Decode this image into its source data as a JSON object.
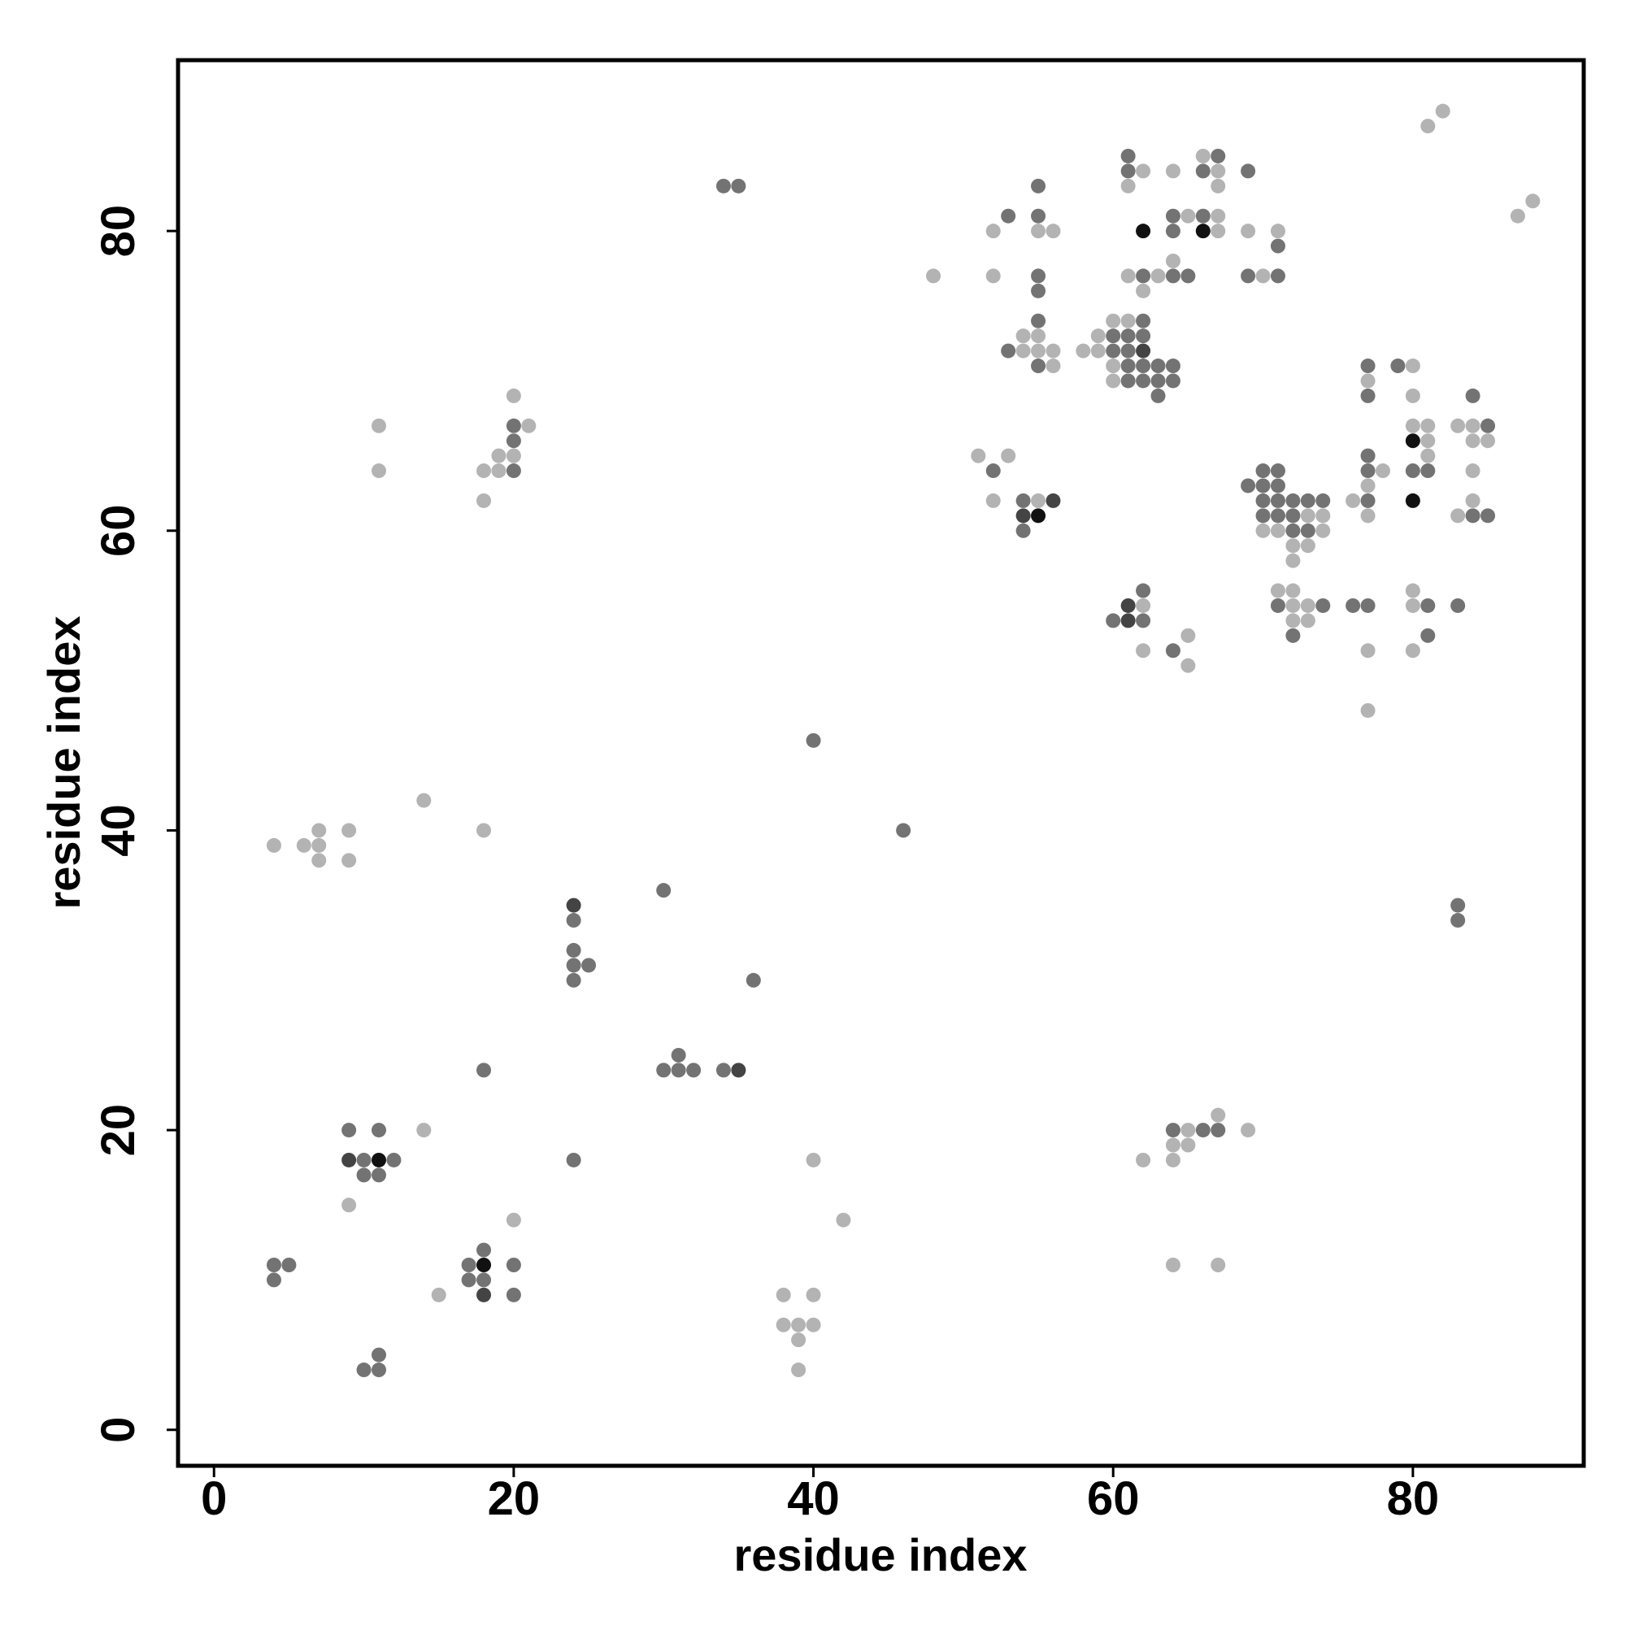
{
  "chart_data": {
    "type": "scatter",
    "xlabel": "residue index",
    "ylabel": "residue index",
    "xlim": [
      -2.4,
      91.4
    ],
    "ylim": [
      -2.4,
      91.4
    ],
    "xticks": [
      0,
      20,
      40,
      60,
      80
    ],
    "yticks": [
      0,
      20,
      40,
      60,
      80
    ],
    "grid": false,
    "series": [
      {
        "color": "#b3b3b3",
        "x": [
          4,
          6,
          7,
          7,
          7,
          9,
          9,
          14,
          18,
          11,
          11,
          18,
          18,
          19,
          19,
          20,
          20,
          21,
          14,
          9,
          20,
          15,
          38,
          40,
          38,
          39,
          40,
          39,
          39,
          40,
          42,
          62,
          65,
          67,
          69,
          64,
          65,
          64,
          64,
          67,
          48,
          52,
          52,
          55,
          56,
          54,
          55,
          54,
          55,
          56,
          56,
          51,
          53,
          52,
          55,
          58,
          59,
          59,
          60,
          60,
          60,
          61,
          61,
          62,
          61,
          63,
          62,
          64,
          65,
          64,
          66,
          67,
          67,
          67,
          67,
          69,
          71,
          70,
          62,
          62,
          65,
          65,
          73,
          74,
          70,
          71,
          74,
          72,
          73,
          72,
          71,
          72,
          72,
          73,
          72,
          73,
          76,
          78,
          77,
          77,
          77,
          77,
          77,
          80,
          80,
          80,
          81,
          81,
          81,
          80,
          80,
          80,
          83,
          84,
          84,
          85,
          84,
          84,
          83,
          81,
          82,
          87,
          88
        ],
        "y": [
          39,
          39,
          40,
          39,
          38,
          40,
          38,
          42,
          40,
          67,
          64,
          62,
          64,
          64,
          65,
          65,
          69,
          67,
          20,
          15,
          14,
          9,
          9,
          9,
          7,
          7,
          7,
          6,
          4,
          18,
          14,
          18,
          20,
          21,
          20,
          19,
          19,
          18,
          11,
          11,
          77,
          80,
          77,
          80,
          80,
          73,
          73,
          72,
          72,
          72,
          71,
          65,
          65,
          62,
          62,
          72,
          73,
          72,
          74,
          71,
          70,
          74,
          83,
          84,
          77,
          77,
          76,
          84,
          81,
          78,
          85,
          84,
          83,
          81,
          80,
          80,
          80,
          77,
          55,
          52,
          53,
          51,
          61,
          61,
          60,
          60,
          60,
          59,
          59,
          58,
          56,
          56,
          55,
          55,
          54,
          54,
          62,
          64,
          61,
          63,
          70,
          52,
          48,
          71,
          69,
          67,
          67,
          66,
          65,
          56,
          55,
          52,
          67,
          67,
          66,
          66,
          64,
          62,
          61,
          87,
          88,
          81,
          82
        ]
      },
      {
        "color": "#737373",
        "x": [
          20,
          20,
          20,
          34,
          35,
          40,
          46,
          24,
          24,
          24,
          25,
          24,
          30,
          36,
          31,
          30,
          31,
          32,
          34,
          18,
          9,
          11,
          10,
          12,
          10,
          11,
          24,
          4,
          5,
          4,
          17,
          18,
          17,
          18,
          20,
          20,
          10,
          11,
          11,
          64,
          66,
          67,
          53,
          55,
          55,
          55,
          55,
          55,
          53,
          55,
          52,
          54,
          54,
          60,
          60,
          61,
          61,
          61,
          61,
          62,
          62,
          62,
          62,
          63,
          63,
          63,
          64,
          64,
          61,
          61,
          62,
          64,
          64,
          64,
          65,
          67,
          66,
          66,
          69,
          71,
          69,
          71,
          62,
          60,
          62,
          64,
          69,
          70,
          71,
          70,
          71,
          70,
          71,
          72,
          73,
          74,
          70,
          71,
          72,
          72,
          73,
          71,
          74,
          72,
          77,
          77,
          77,
          77,
          77,
          76,
          77,
          79,
          80,
          81,
          81,
          81,
          85,
          84,
          84,
          85,
          83,
          83,
          83
        ],
        "y": [
          64,
          66,
          67,
          83,
          83,
          46,
          40,
          34,
          32,
          31,
          31,
          30,
          36,
          30,
          25,
          24,
          24,
          24,
          24,
          24,
          20,
          20,
          18,
          18,
          17,
          17,
          18,
          11,
          11,
          10,
          11,
          12,
          10,
          10,
          11,
          9,
          4,
          4,
          5,
          20,
          20,
          20,
          81,
          83,
          81,
          77,
          76,
          74,
          72,
          71,
          64,
          62,
          60,
          73,
          72,
          73,
          72,
          71,
          70,
          74,
          73,
          71,
          70,
          71,
          70,
          69,
          71,
          70,
          85,
          84,
          77,
          81,
          80,
          77,
          77,
          85,
          84,
          81,
          84,
          79,
          77,
          77,
          56,
          54,
          54,
          52,
          63,
          64,
          64,
          63,
          63,
          62,
          62,
          62,
          62,
          62,
          61,
          61,
          61,
          60,
          60,
          55,
          55,
          53,
          62,
          64,
          65,
          69,
          71,
          55,
          55,
          71,
          64,
          64,
          55,
          53,
          67,
          69,
          61,
          61,
          55,
          35,
          34
        ]
      },
      {
        "color": "#444444",
        "x": [
          24,
          35,
          9,
          18,
          56,
          54,
          62,
          61,
          61
        ],
        "y": [
          35,
          24,
          18,
          9,
          62,
          61,
          72,
          55,
          54
        ]
      },
      {
        "color": "#111111",
        "x": [
          11,
          18,
          55,
          62,
          66,
          80,
          80
        ],
        "y": [
          18,
          11,
          61,
          80,
          80,
          66,
          62
        ]
      }
    ]
  }
}
